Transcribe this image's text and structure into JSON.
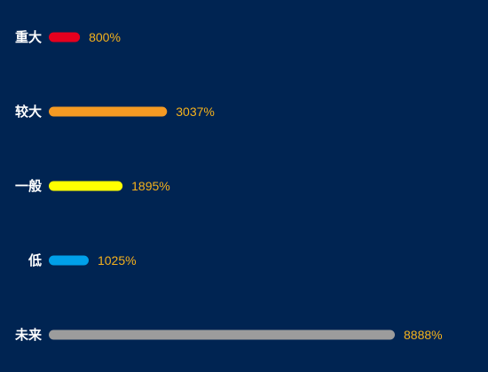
{
  "chart_data": {
    "type": "bar",
    "orientation": "horizontal",
    "title": "",
    "xlabel": "",
    "ylabel": "",
    "categories": [
      "重大",
      "较大",
      "一般",
      "低",
      "未来"
    ],
    "values": [
      800,
      3037,
      1895,
      1025,
      8888
    ],
    "value_labels": [
      "800%",
      "3037%",
      "1895%",
      "1025%",
      "8888%"
    ],
    "colors": [
      "#e5001e",
      "#f59a23",
      "#ffff00",
      "#00a0e9",
      "#9c9c9c"
    ],
    "xlim": [
      0,
      8888
    ],
    "grid": false,
    "legend": "none"
  },
  "colors": {
    "background": "#002452",
    "category_text": "#ffffff",
    "value_text": "#f5b21c"
  }
}
